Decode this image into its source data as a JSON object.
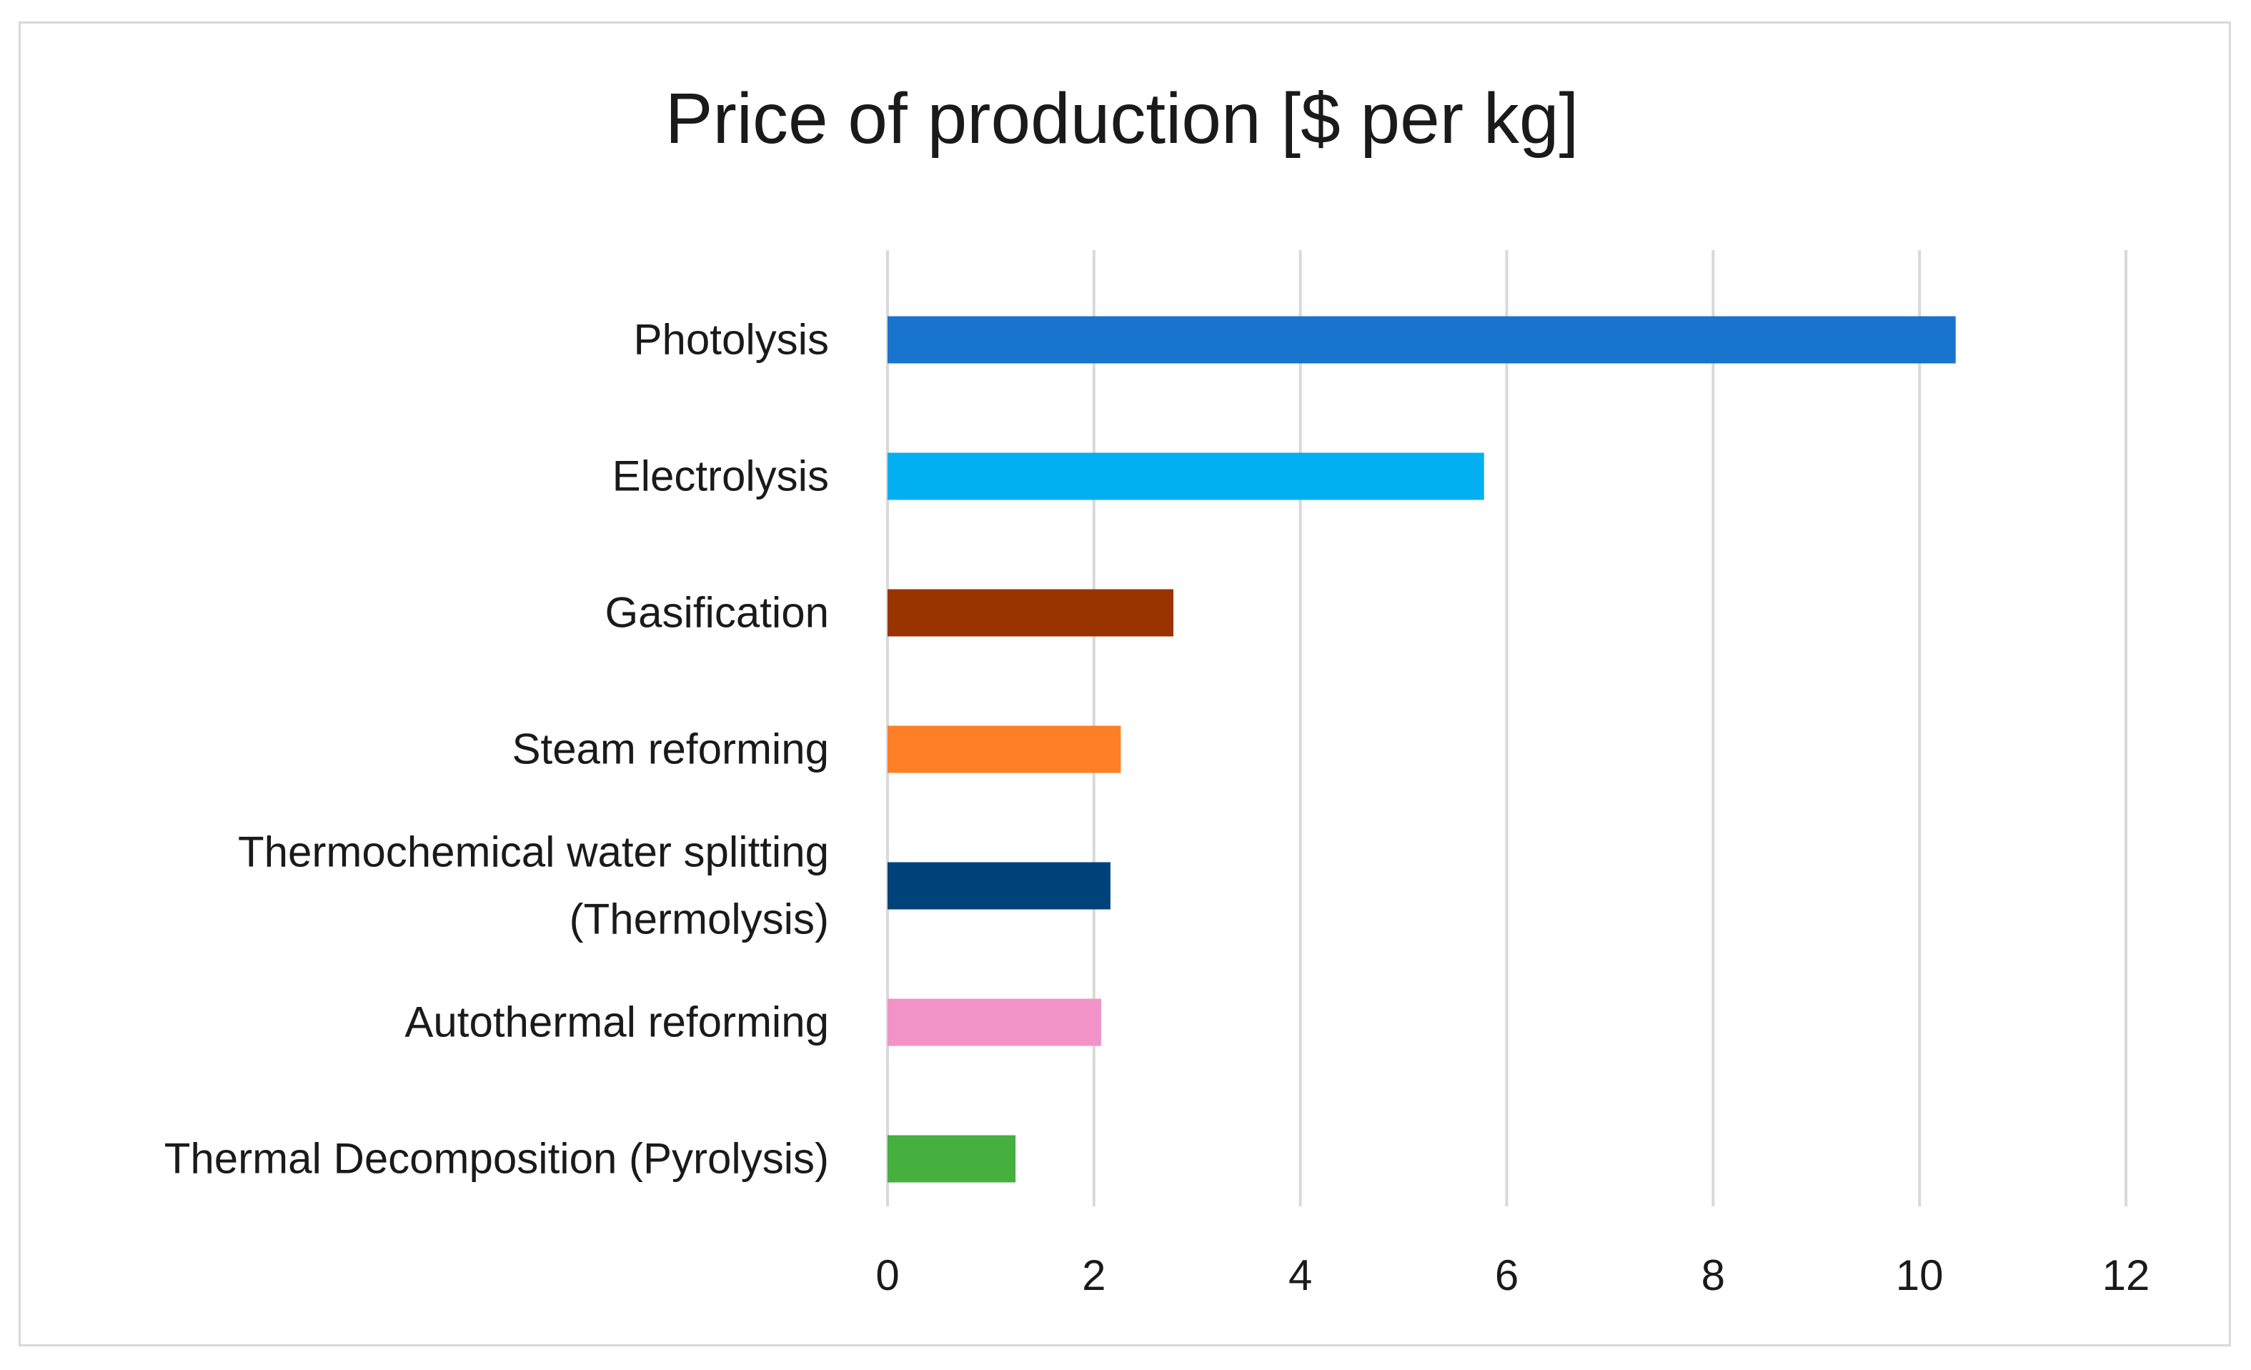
{
  "chart_data": {
    "type": "bar",
    "orientation": "horizontal",
    "title": "Price of production [$ per kg]",
    "xlabel": "",
    "ylabel": "",
    "xlim": [
      0,
      12
    ],
    "ticks": [
      0,
      2,
      4,
      6,
      8,
      10,
      12
    ],
    "tick_labels": [
      "0",
      "2",
      "4",
      "6",
      "8",
      "10",
      "12"
    ],
    "grid": true,
    "legend": "none",
    "categories": [
      [
        "Photolysis"
      ],
      [
        "Electrolysis"
      ],
      [
        "Gasification"
      ],
      [
        "Steam reforming"
      ],
      [
        "Thermochemical water splitting",
        "(Thermolysis)"
      ],
      [
        "Autothermal reforming"
      ],
      [
        "Thermal Decomposition (Pyrolysis)"
      ]
    ],
    "values": [
      10.35,
      5.78,
      2.77,
      2.26,
      2.16,
      2.07,
      1.24
    ],
    "colors": [
      "#1874CD",
      "#00B0F0",
      "#993300",
      "#FF7F27",
      "#00437A",
      "#F293C8",
      "#45B03E"
    ]
  }
}
